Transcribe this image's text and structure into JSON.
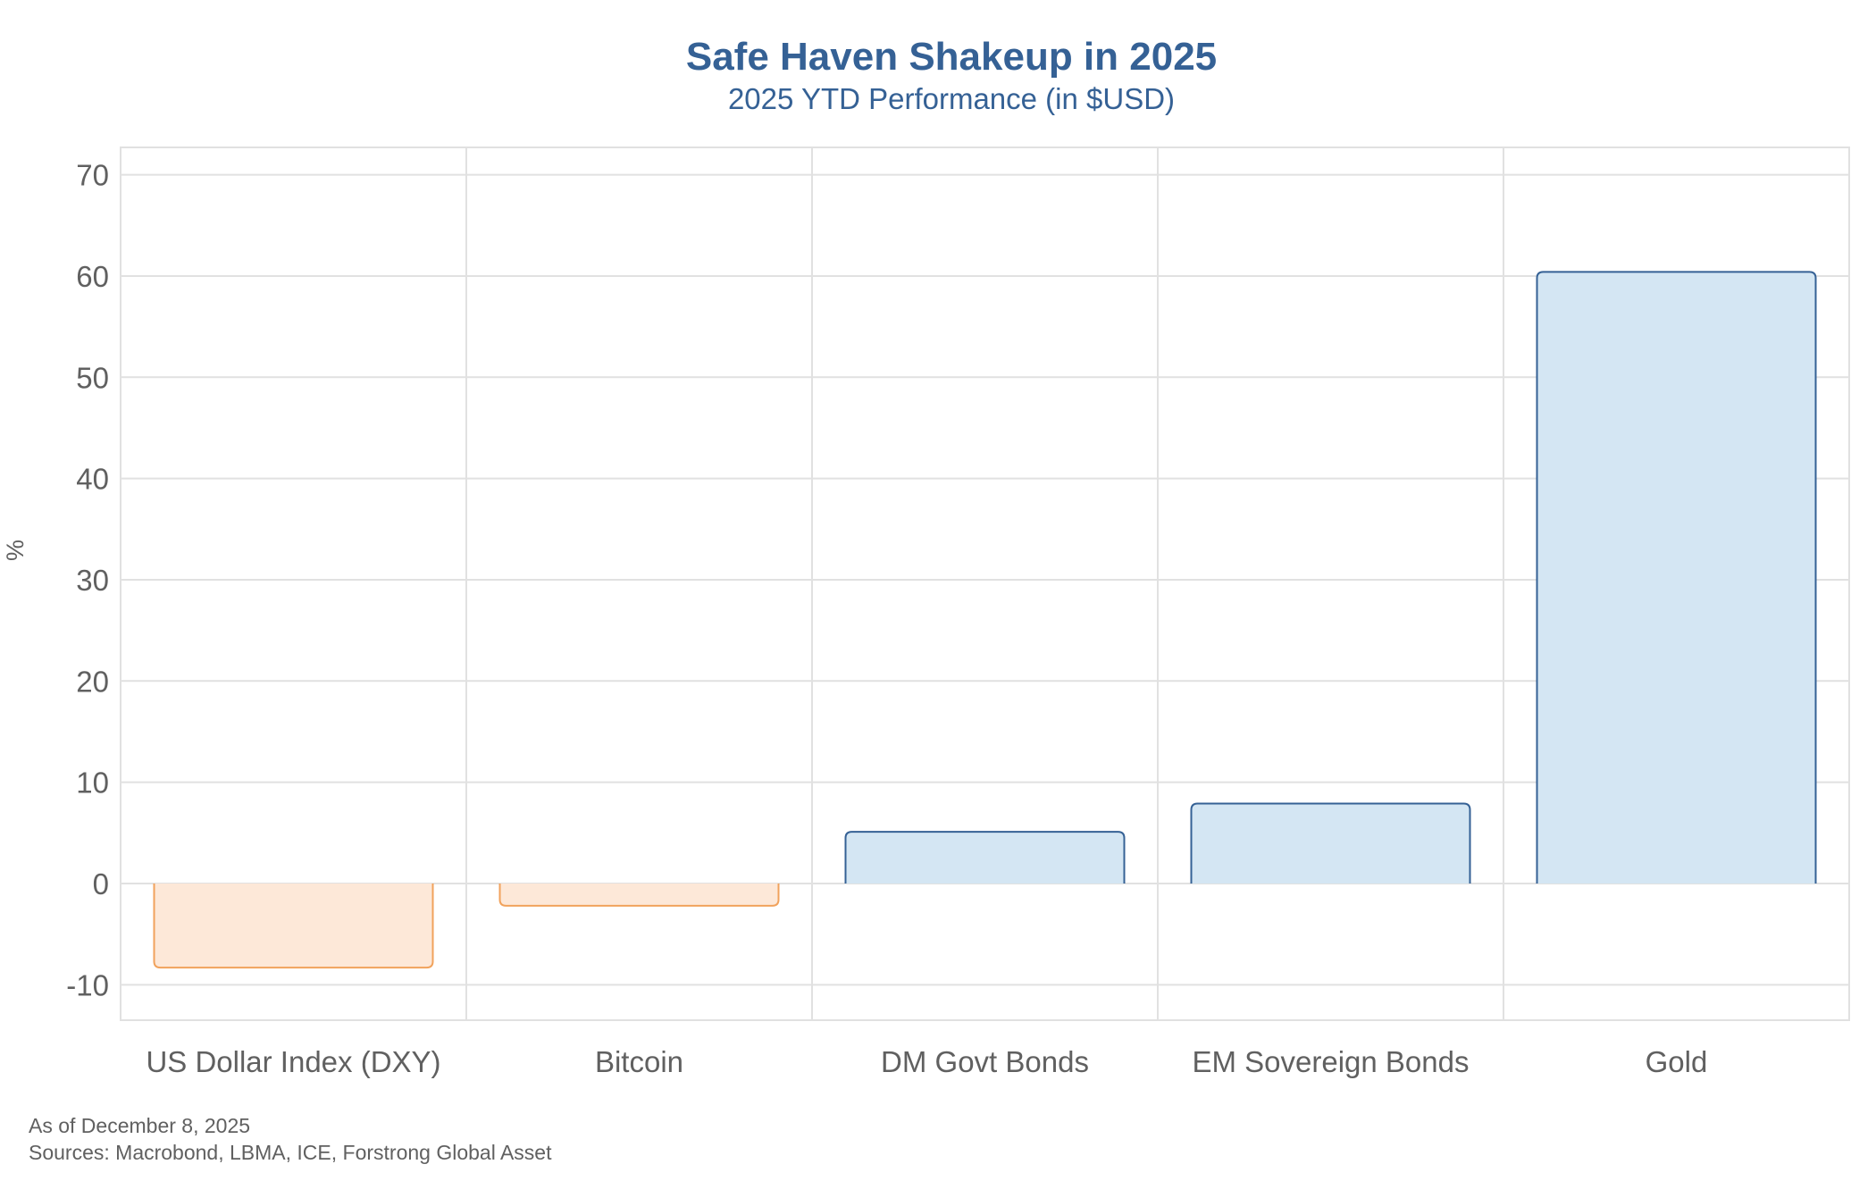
{
  "chart_data": {
    "type": "bar",
    "title": "Safe Haven Shakeup in 2025",
    "subtitle": "2025 YTD Performance (in $USD)",
    "ylabel": "%",
    "xlabel": "",
    "categories": [
      "US Dollar Index (DXY)",
      "Bitcoin",
      "DM Govt Bonds",
      "EM Sovereign Bonds",
      "Gold"
    ],
    "values": [
      -8.3,
      -2.2,
      5.1,
      7.9,
      60.4
    ],
    "ylim": [
      -13.5,
      72.7
    ],
    "yticks": [
      70,
      60,
      50,
      40,
      30,
      20,
      10,
      0,
      -10
    ],
    "ytick_labels": [
      "70",
      "60",
      "50",
      "40",
      "30",
      "20",
      "10",
      "0",
      "-10"
    ],
    "grid": true,
    "legend": "none",
    "colors": {
      "positive_fill": "#d4e6f3",
      "positive_stroke": "#356195",
      "negative_fill": "#fde8d8",
      "negative_stroke": "#f1a25c"
    }
  },
  "footnotes": {
    "date_note": "As of December 8, 2025",
    "sources": "Sources: Macrobond, LBMA, ICE, Forstrong Global Asset"
  }
}
